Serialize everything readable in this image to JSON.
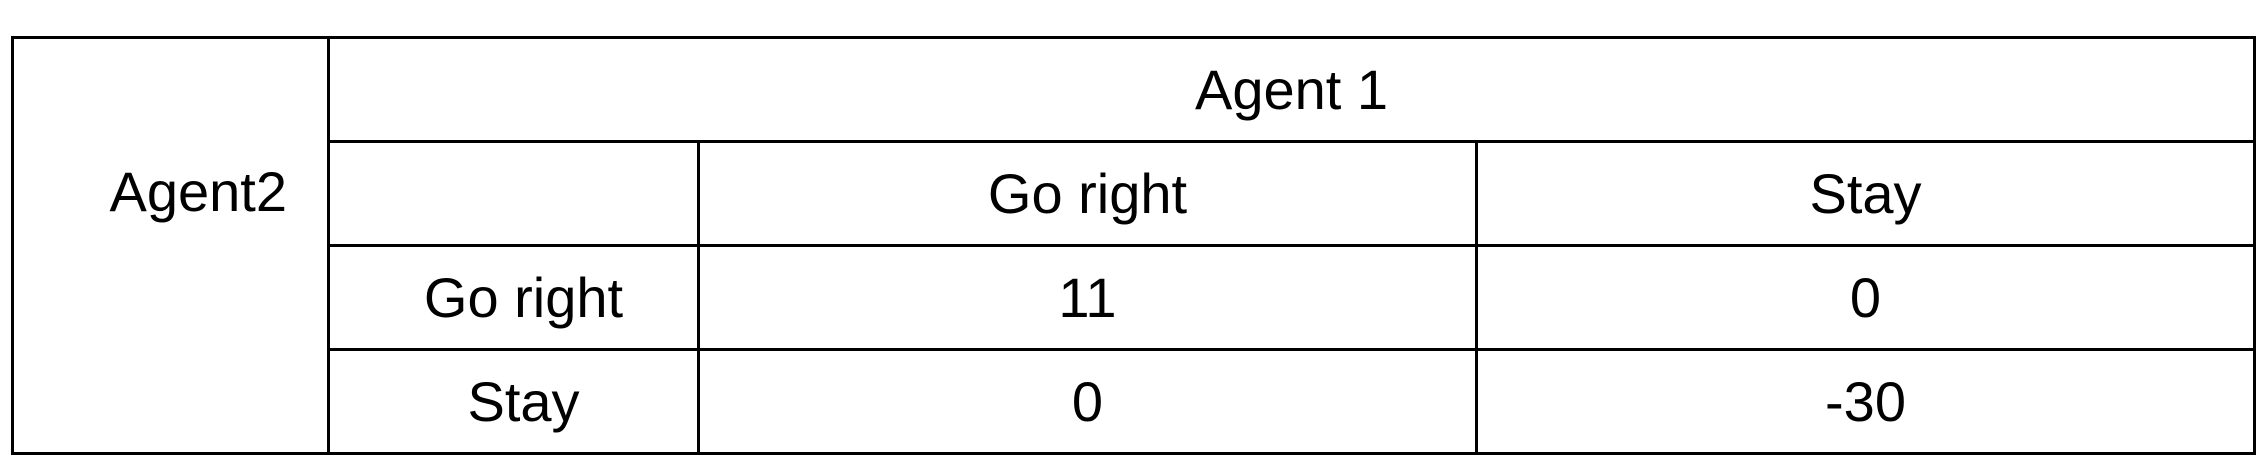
{
  "payoff_matrix": {
    "column_player": "Agent 1",
    "row_player": "Agent2",
    "column_actions": [
      "Go right",
      "Stay"
    ],
    "rows": [
      {
        "action": "Go right",
        "values": [
          "11",
          "0"
        ]
      },
      {
        "action": "Stay",
        "values": [
          "0",
          "-30"
        ]
      }
    ]
  }
}
